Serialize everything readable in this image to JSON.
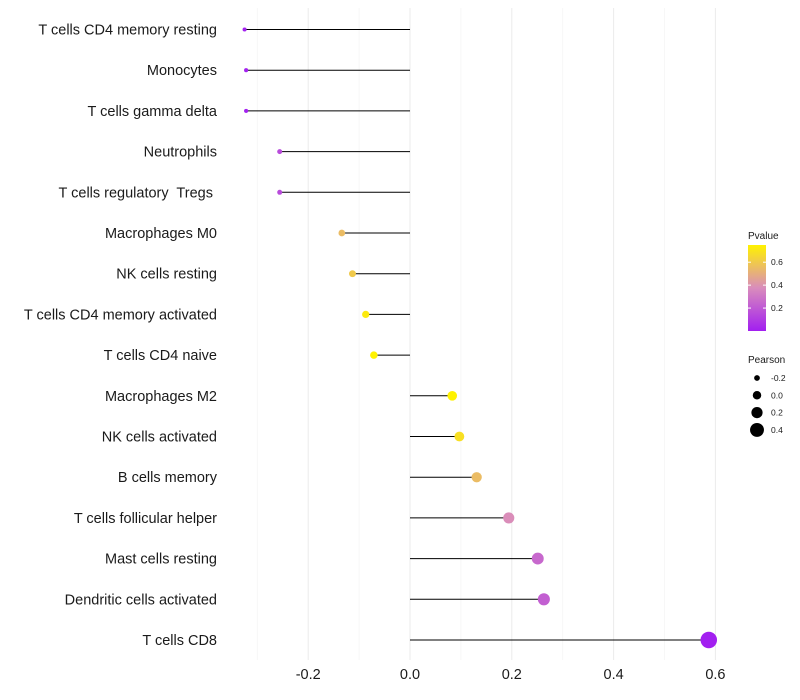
{
  "chart_data": {
    "type": "lollipop",
    "categories": [
      "T cells CD4 memory resting",
      "Monocytes",
      "T cells gamma delta",
      "Neutrophils",
      "T cells regulatory  Tregs ",
      "Macrophages M0",
      "NK cells resting",
      "T cells CD4 memory activated",
      "T cells CD4 naive",
      "Macrophages M2",
      "NK cells activated",
      "B cells memory",
      "T cells follicular helper",
      "Mast cells resting",
      "Dendritic cells activated",
      "T cells CD8"
    ],
    "values": [
      -0.325,
      -0.322,
      -0.322,
      -0.256,
      -0.256,
      -0.134,
      -0.113,
      -0.087,
      -0.071,
      0.083,
      0.097,
      0.131,
      0.194,
      0.251,
      0.263,
      0.587
    ],
    "pvalues": [
      0.01,
      0.01,
      0.01,
      0.15,
      0.15,
      0.55,
      0.6,
      0.72,
      0.78,
      0.76,
      0.68,
      0.55,
      0.38,
      0.25,
      0.22,
      0.0
    ],
    "xlim": [
      -0.38,
      0.62
    ],
    "x_ticks": [
      -0.2,
      0.0,
      0.2,
      0.4,
      0.6
    ],
    "x_tick_labels": [
      "-0.2",
      "0.0",
      "0.2",
      "0.4",
      "0.6"
    ],
    "xlabel": "",
    "ylabel": "",
    "grid": true,
    "colors": {
      "low": "#a21ff0",
      "mid": "#d98cbc",
      "high": "#fff200",
      "stem": "#000000"
    },
    "legend_color": {
      "title": "Pvalue",
      "ticks": [
        0.6,
        0.4,
        0.2
      ],
      "tick_labels": [
        "0.6",
        "0.4",
        "0.2"
      ],
      "range": [
        0.0,
        0.75
      ]
    },
    "legend_size": {
      "title": "Pearson",
      "values": [
        -0.2,
        0.0,
        0.2,
        0.4
      ],
      "labels": [
        "-0.2",
        "0.0",
        "0.2",
        "0.4"
      ]
    }
  }
}
